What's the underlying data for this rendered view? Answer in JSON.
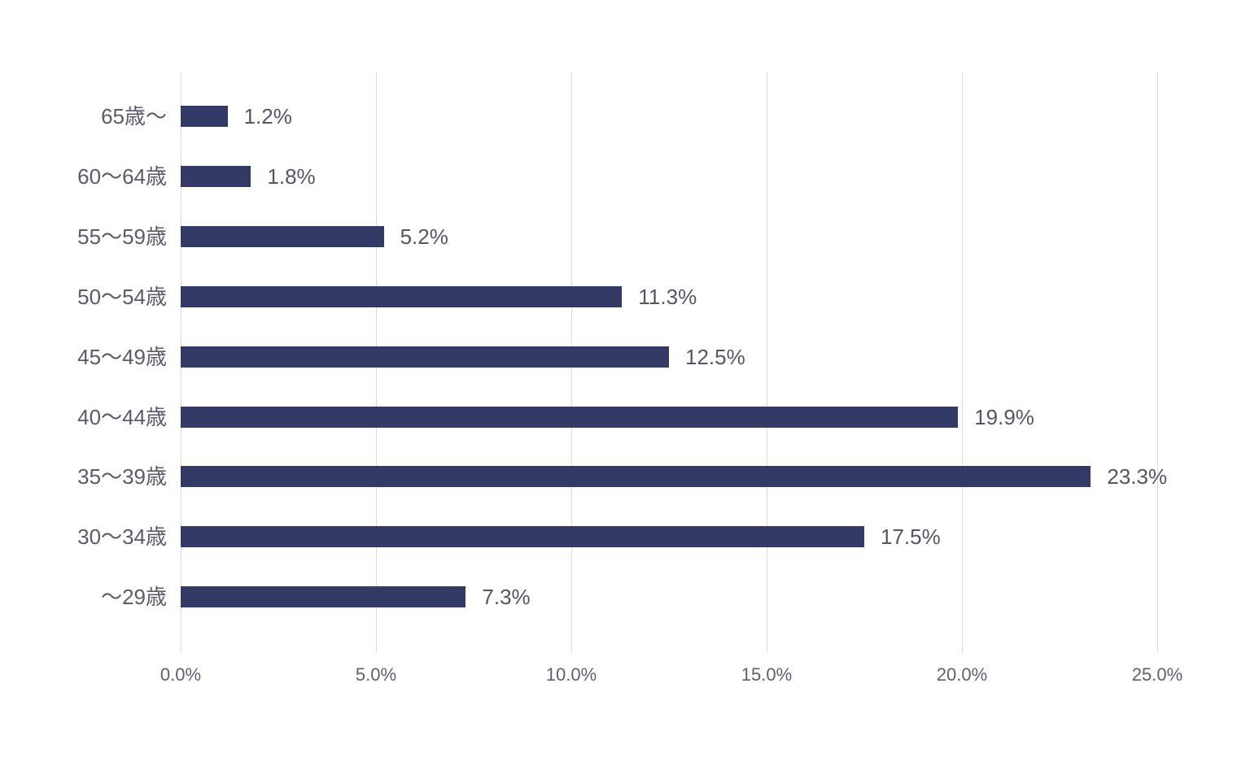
{
  "chart_data": {
    "type": "bar",
    "orientation": "horizontal",
    "title": "",
    "categories": [
      "65歳〜",
      "60〜64歳",
      "55〜59歳",
      "50〜54歳",
      "45〜49歳",
      "40〜44歳",
      "35〜39歳",
      "30〜34歳",
      "〜29歳"
    ],
    "values": [
      1.2,
      1.8,
      5.2,
      11.3,
      12.5,
      19.9,
      23.3,
      17.5,
      7.3
    ],
    "value_labels": [
      "1.2%",
      "1.8%",
      "5.2%",
      "11.3%",
      "12.5%",
      "19.9%",
      "23.3%",
      "17.5%",
      "7.3%"
    ],
    "x_tick_labels": [
      "0.0%",
      "5.0%",
      "10.0%",
      "15.0%",
      "20.0%",
      "25.0%"
    ],
    "x_tick_values": [
      0,
      5,
      10,
      15,
      20,
      25
    ],
    "xlim": [
      0,
      25
    ],
    "grid": true,
    "legend": false,
    "data_labels": true
  },
  "style": {
    "bar_color": "#333A66",
    "grid_color": "#DCDCDC",
    "category_label_color": "#5B5B6B",
    "value_label_color": "#55556A",
    "tick_label_color": "#5F5F73",
    "background_color": "#FFFFFF"
  }
}
